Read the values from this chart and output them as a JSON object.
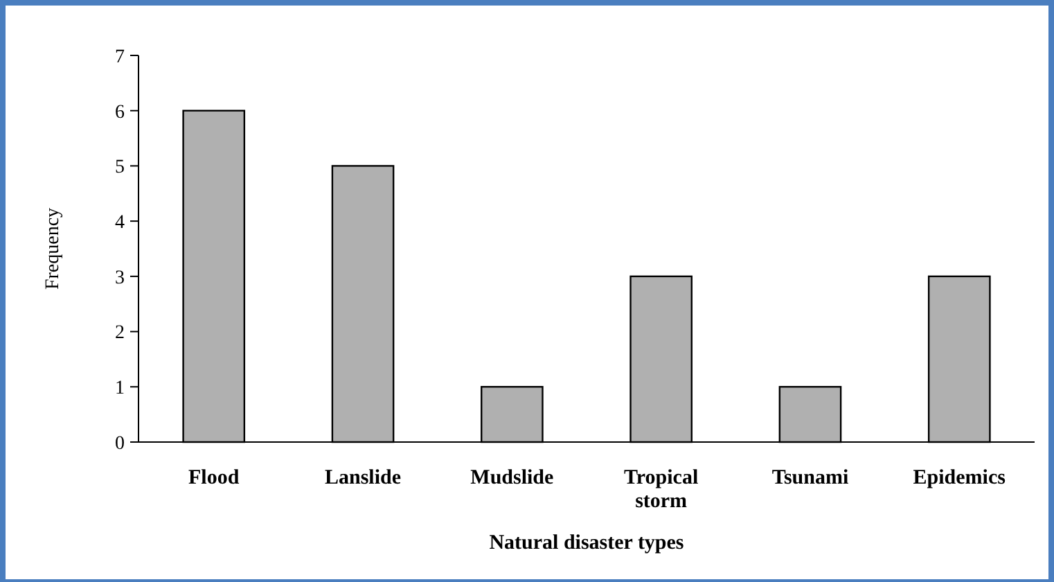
{
  "chart_data": {
    "type": "bar",
    "xlabel": "Natural disaster types",
    "ylabel": "Frequency",
    "categories": [
      "Flood",
      "Lanslide",
      "Mudslide",
      "Tropical storm",
      "Tsunami",
      "Epidemics"
    ],
    "values": [
      6,
      5,
      1,
      3,
      1,
      3
    ],
    "color": "#b0b0b0",
    "ylim": [
      0,
      7
    ],
    "yticks": [
      0,
      1,
      2,
      3,
      4,
      5,
      6,
      7
    ],
    "grid": false
  }
}
